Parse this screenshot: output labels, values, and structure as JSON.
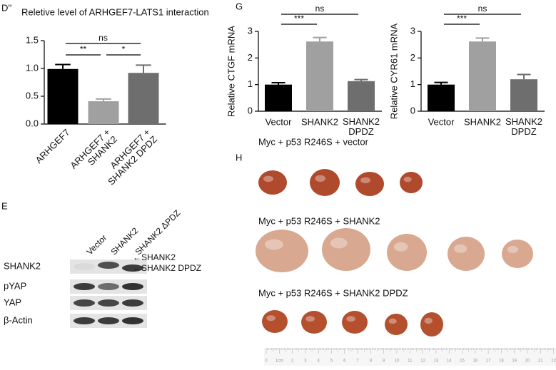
{
  "panels": {
    "d": "D''",
    "e": "E",
    "g": "G",
    "h": "H"
  },
  "chart_data": [
    {
      "type": "bar",
      "title": "Reletive level of ARHGEF7-LATS1 interaction",
      "categories": [
        "ARHGEF7",
        "ARHGEF7 +\nSHANK2",
        "ARHGEF7 +\nSHANK2 DPDZ"
      ],
      "values": [
        0.99,
        0.41,
        0.92
      ],
      "errors": [
        0.08,
        0.04,
        0.14
      ],
      "colors": [
        "#000000",
        "#a0a0a0",
        "#6e6e6e"
      ],
      "ylim": [
        0,
        1.5
      ],
      "yticks": [
        {
          "value": 0,
          "label": "0.0"
        },
        {
          "value": 0.5,
          "label": "0.5"
        },
        {
          "value": 1,
          "label": "1.0"
        },
        {
          "value": 1.5,
          "label": "1.5"
        }
      ],
      "annotations": [
        "**",
        "*",
        "ns"
      ]
    },
    {
      "type": "bar",
      "ylabel": "Relative CTGF mRNA",
      "categories": [
        "Vector",
        "SHANK2",
        "SHANK2\nDPDZ"
      ],
      "values": [
        1.0,
        2.62,
        1.13
      ],
      "errors": [
        0.07,
        0.15,
        0.06
      ],
      "colors": [
        "#000000",
        "#a0a0a0",
        "#6e6e6e"
      ],
      "ylim": [
        0,
        3
      ],
      "yticks": [
        0,
        1,
        2,
        3
      ],
      "annotations": [
        "***",
        "ns"
      ]
    },
    {
      "type": "bar",
      "ylabel": "Relative CYR61 mRNA",
      "categories": [
        "Vector",
        "SHANK2",
        "SHANK2\nDPDZ"
      ],
      "values": [
        1.0,
        2.62,
        1.2
      ],
      "errors": [
        0.08,
        0.13,
        0.18
      ],
      "colors": [
        "#000000",
        "#a0a0a0",
        "#6e6e6e"
      ],
      "ylim": [
        0,
        3
      ],
      "yticks": [
        0,
        1,
        2,
        3
      ],
      "annotations": [
        "***",
        "ns"
      ]
    }
  ],
  "blot": {
    "lanes": [
      "Vector",
      "SHANK2",
      "SHANK2 ΔPDZ"
    ],
    "rows": [
      "SHANK2",
      "pYAP",
      "YAP",
      "β-Actin"
    ],
    "arrows": [
      "←SHANK2",
      "←SHANK2 DPDZ"
    ]
  },
  "livers": {
    "groups": [
      "Myc + p53 R246S + vector",
      "Myc + p53 R246S + SHANK2",
      "Myc + p53 R246S + SHANK2 DPDZ"
    ],
    "ruler": [
      "0",
      "1cm",
      "2",
      "3",
      "4",
      "5",
      "6",
      "7",
      "8",
      "9",
      "10",
      "11",
      "12",
      "13",
      "14",
      "15",
      "16",
      "17",
      "18",
      "19",
      "20",
      "21",
      "22"
    ]
  }
}
